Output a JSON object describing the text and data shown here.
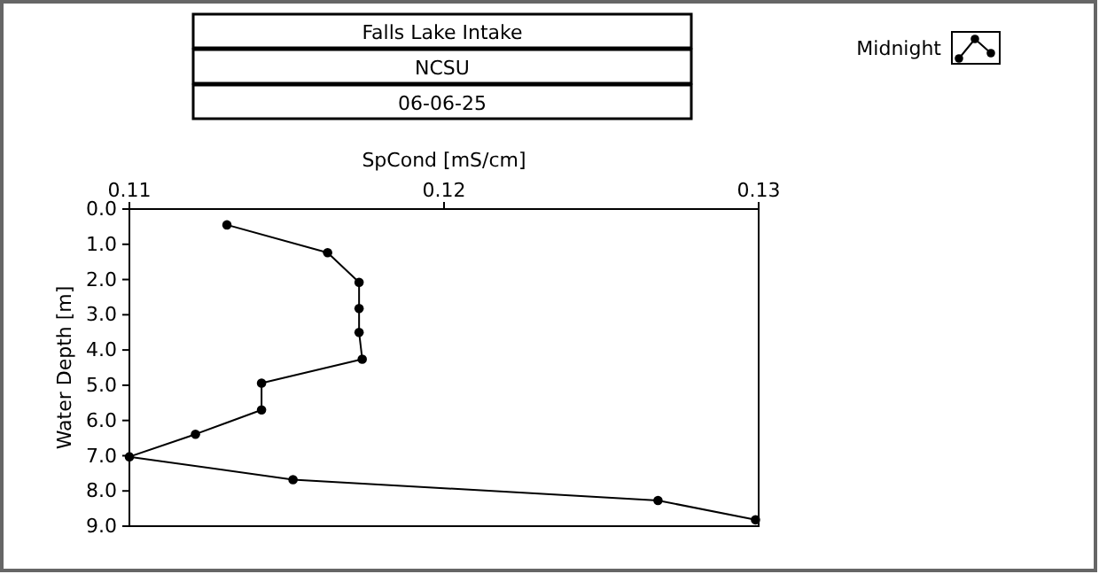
{
  "chart_data": {
    "type": "line",
    "title": "Falls Lake Intake",
    "subtitle": "NCSU",
    "annotations": [
      "06-06-25"
    ],
    "xlabel": "SpCond [mS/cm]",
    "ylabel": "Water Depth [m]",
    "xlim": [
      0.11,
      0.13
    ],
    "xticks": [
      0.11,
      0.12,
      0.13
    ],
    "ylim": [
      9,
      0
    ],
    "yticks": [
      {
        "value": 0,
        "label": "0.0"
      },
      {
        "value": 1,
        "label": "1.0"
      },
      {
        "value": 2,
        "label": "2.0"
      },
      {
        "value": 3,
        "label": "3.0"
      },
      {
        "value": 4,
        "label": "4.0"
      },
      {
        "value": 5,
        "label": "5.0"
      },
      {
        "value": 6,
        "label": "6.0"
      },
      {
        "value": 7,
        "label": "7.0"
      },
      {
        "value": 8,
        "label": "8.0"
      },
      {
        "value": 9,
        "label": "9.0"
      }
    ],
    "series": [
      {
        "name": "Midnight",
        "color": "#000000",
        "x": [
          0.1131,
          0.1163,
          0.1173,
          0.1173,
          0.1173,
          0.1174,
          0.1142,
          0.1142,
          0.1121,
          0.11,
          0.1152,
          0.1268,
          0.1299
        ],
        "values": [
          0.45,
          1.24,
          2.08,
          2.82,
          3.5,
          4.26,
          4.94,
          5.7,
          6.39,
          7.03,
          7.68,
          8.27,
          8.82
        ]
      }
    ],
    "marker": "circle",
    "line_style": "solid",
    "legend": "top right",
    "grid": false
  }
}
